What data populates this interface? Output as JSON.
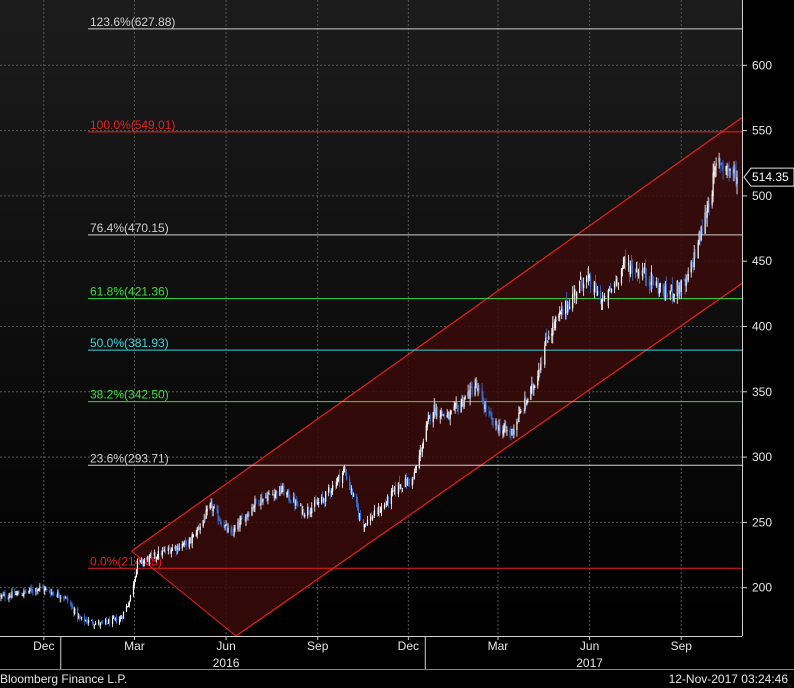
{
  "chart_data": {
    "type": "candlestick",
    "colors": {
      "background_top": "#1c1c1c",
      "background_bottom": "#000000",
      "channel_fill": "#3a0a0a",
      "channel_line": "#e8201e",
      "candle_up": "#ffffff",
      "candle_down": "#3a6fd8",
      "grid": "#555555"
    },
    "y_axis": {
      "ticks": [
        200,
        250,
        300,
        350,
        400,
        450,
        500,
        550,
        600
      ],
      "range": [
        163,
        650
      ],
      "last_value": "514.35"
    },
    "x_axis": {
      "month_labels": [
        {
          "label": "Dec",
          "date": "2015-12-15"
        },
        {
          "label": "Mar",
          "date": "2016-03-15"
        },
        {
          "label": "Jun",
          "date": "2016-06-15"
        },
        {
          "label": "Sep",
          "date": "2016-09-15"
        },
        {
          "label": "Dec",
          "date": "2016-12-15"
        },
        {
          "label": "Mar",
          "date": "2017-03-15"
        },
        {
          "label": "Jun",
          "date": "2017-06-15"
        },
        {
          "label": "Sep",
          "date": "2017-09-15"
        }
      ],
      "year_labels": [
        {
          "label": "2016",
          "date": "2016-06-15"
        },
        {
          "label": "2017",
          "date": "2017-06-15"
        }
      ],
      "year_dividers": [
        "2016-01-01",
        "2017-01-01"
      ],
      "range": [
        "2015-11-01",
        "2017-11-15"
      ]
    },
    "fib_levels": [
      {
        "label": "123.6%(627.88)",
        "value": 627.88,
        "color": "#cfcfcf"
      },
      {
        "label": "100.0%(549.01)",
        "value": 549.01,
        "color": "#e8201e"
      },
      {
        "label": "76.4%(470.15)",
        "value": 470.15,
        "color": "#cfcfcf"
      },
      {
        "label": "61.8%(421.36)",
        "value": 421.36,
        "color": "#3ddc3d"
      },
      {
        "label": "50.0%(381.93)",
        "value": 381.93,
        "color": "#38d6dc"
      },
      {
        "label": "38.2%(342.50)",
        "value": 342.5,
        "color": "#3ddc3d"
      },
      {
        "label": "23.6%(293.71)",
        "value": 293.71,
        "color": "#cfcfcf"
      },
      {
        "label": "0.0%(214.85)",
        "value": 214.85,
        "color": "#e8201e"
      }
    ],
    "channel": {
      "upper": [
        {
          "date": "2016-03-12",
          "value": 228
        },
        {
          "date": "2017-11-15",
          "value": 560
        }
      ],
      "lower": [
        {
          "date": "2016-06-25",
          "value": 163
        },
        {
          "date": "2017-11-15",
          "value": 433
        }
      ]
    },
    "price_path": [
      {
        "date": "2015-11-01",
        "value": 193
      },
      {
        "date": "2015-11-25",
        "value": 196
      },
      {
        "date": "2015-12-10",
        "value": 200
      },
      {
        "date": "2016-01-05",
        "value": 193
      },
      {
        "date": "2016-01-20",
        "value": 176
      },
      {
        "date": "2016-02-10",
        "value": 172
      },
      {
        "date": "2016-03-01",
        "value": 176
      },
      {
        "date": "2016-03-10",
        "value": 190
      },
      {
        "date": "2016-03-18",
        "value": 218
      },
      {
        "date": "2016-04-15",
        "value": 228
      },
      {
        "date": "2016-05-10",
        "value": 235
      },
      {
        "date": "2016-05-31",
        "value": 262
      },
      {
        "date": "2016-06-20",
        "value": 240
      },
      {
        "date": "2016-07-15",
        "value": 266
      },
      {
        "date": "2016-08-10",
        "value": 275
      },
      {
        "date": "2016-09-01",
        "value": 258
      },
      {
        "date": "2016-09-20",
        "value": 267
      },
      {
        "date": "2016-10-12",
        "value": 290
      },
      {
        "date": "2016-10-30",
        "value": 248
      },
      {
        "date": "2016-11-20",
        "value": 262
      },
      {
        "date": "2016-12-05",
        "value": 278
      },
      {
        "date": "2016-12-20",
        "value": 283
      },
      {
        "date": "2017-01-08",
        "value": 338
      },
      {
        "date": "2017-01-25",
        "value": 330
      },
      {
        "date": "2017-02-20",
        "value": 355
      },
      {
        "date": "2017-03-10",
        "value": 325
      },
      {
        "date": "2017-03-28",
        "value": 318
      },
      {
        "date": "2017-04-20",
        "value": 355
      },
      {
        "date": "2017-05-05",
        "value": 395
      },
      {
        "date": "2017-05-20",
        "value": 412
      },
      {
        "date": "2017-06-10",
        "value": 438
      },
      {
        "date": "2017-06-30",
        "value": 418
      },
      {
        "date": "2017-07-20",
        "value": 448
      },
      {
        "date": "2017-08-10",
        "value": 440
      },
      {
        "date": "2017-08-30",
        "value": 425
      },
      {
        "date": "2017-09-20",
        "value": 432
      },
      {
        "date": "2017-10-08",
        "value": 480
      },
      {
        "date": "2017-10-22",
        "value": 528
      },
      {
        "date": "2017-11-10",
        "value": 514.35
      }
    ]
  },
  "footer": {
    "source": "Bloomberg Finance L.P.",
    "timestamp": "12-Nov-2017 03:24:46"
  }
}
